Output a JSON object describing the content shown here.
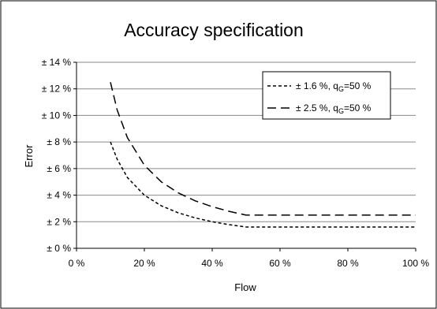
{
  "chart_data": {
    "type": "line",
    "title": "Accuracy specification",
    "xlabel": "Flow",
    "ylabel": "Error",
    "xlim": [
      0,
      100
    ],
    "ylim": [
      0,
      14
    ],
    "x_ticks": [
      0,
      20,
      40,
      60,
      80,
      100
    ],
    "y_ticks": [
      0,
      2,
      4,
      6,
      8,
      10,
      12,
      14
    ],
    "x_tick_labels": [
      "0 %",
      "20 %",
      "40 %",
      "60 %",
      "80 %",
      "100 %"
    ],
    "y_tick_labels": [
      "± 0 %",
      "± 2 %",
      "± 4 %",
      "± 6 %",
      "± 8 %",
      "± 10 %",
      "± 12 %",
      "± 14 %"
    ],
    "grid": "horizontal",
    "legend_position": "top-right",
    "series": [
      {
        "name": "± 1.6 %, q",
        "name_sub": "G",
        "name_suffix": "=50 %",
        "dash": "short",
        "x": [
          10,
          12,
          15,
          20,
          25,
          30,
          35,
          40,
          45,
          50,
          55,
          60,
          70,
          80,
          90,
          100
        ],
        "y": [
          8.0,
          6.7,
          5.33,
          4.0,
          3.2,
          2.67,
          2.29,
          2.0,
          1.78,
          1.6,
          1.6,
          1.6,
          1.6,
          1.6,
          1.6,
          1.6
        ]
      },
      {
        "name": "± 2.5 %, q",
        "name_sub": "G",
        "name_suffix": "=50 %",
        "dash": "long",
        "x": [
          10,
          12,
          15,
          20,
          25,
          30,
          35,
          40,
          45,
          50,
          55,
          60,
          70,
          80,
          90,
          100
        ],
        "y": [
          12.5,
          10.4,
          8.33,
          6.25,
          5.0,
          4.17,
          3.57,
          3.13,
          2.78,
          2.5,
          2.5,
          2.5,
          2.5,
          2.5,
          2.5,
          2.5
        ]
      }
    ]
  }
}
